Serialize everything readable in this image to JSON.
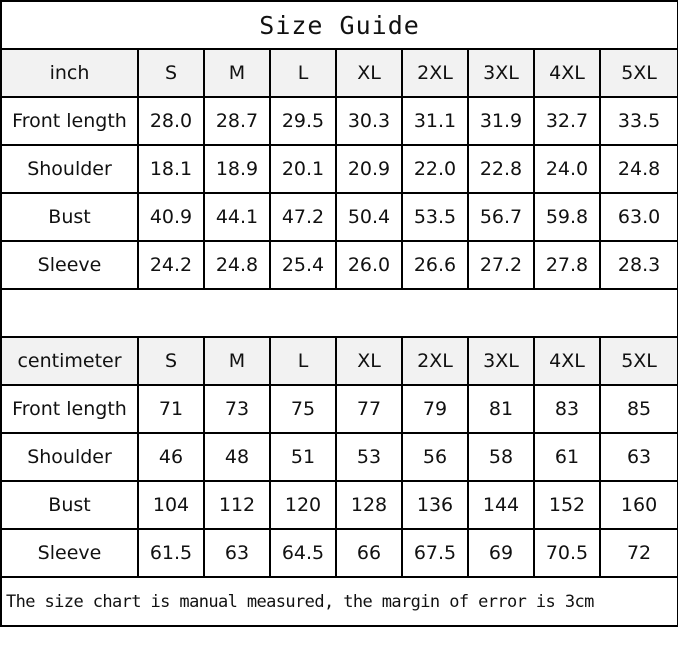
{
  "title": "Size Guide",
  "sizes": [
    "S",
    "M",
    "L",
    "XL",
    "2XL",
    "3XL",
    "4XL",
    "5XL"
  ],
  "inch": {
    "unit_label": "inch",
    "rows": [
      {
        "label": "Front length",
        "values": [
          "28.0",
          "28.7",
          "29.5",
          "30.3",
          "31.1",
          "31.9",
          "32.7",
          "33.5"
        ]
      },
      {
        "label": "Shoulder",
        "values": [
          "18.1",
          "18.9",
          "20.1",
          "20.9",
          "22.0",
          "22.8",
          "24.0",
          "24.8"
        ]
      },
      {
        "label": "Bust",
        "values": [
          "40.9",
          "44.1",
          "47.2",
          "50.4",
          "53.5",
          "56.7",
          "59.8",
          "63.0"
        ]
      },
      {
        "label": "Sleeve",
        "values": [
          "24.2",
          "24.8",
          "25.4",
          "26.0",
          "26.6",
          "27.2",
          "27.8",
          "28.3"
        ]
      }
    ]
  },
  "centimeter": {
    "unit_label": "centimeter",
    "rows": [
      {
        "label": "Front length",
        "values": [
          "71",
          "73",
          "75",
          "77",
          "79",
          "81",
          "83",
          "85"
        ]
      },
      {
        "label": "Shoulder",
        "values": [
          "46",
          "48",
          "51",
          "53",
          "56",
          "58",
          "61",
          "63"
        ]
      },
      {
        "label": "Bust",
        "values": [
          "104",
          "112",
          "120",
          "128",
          "136",
          "144",
          "152",
          "160"
        ]
      },
      {
        "label": "Sleeve",
        "values": [
          "61.5",
          "63",
          "64.5",
          "66",
          "67.5",
          "69",
          "70.5",
          "72"
        ]
      }
    ]
  },
  "footer": "The size chart is manual measured, the margin of error is 3cm",
  "colors": {
    "header_bg": "#f2f2f2",
    "border": "#000000"
  }
}
